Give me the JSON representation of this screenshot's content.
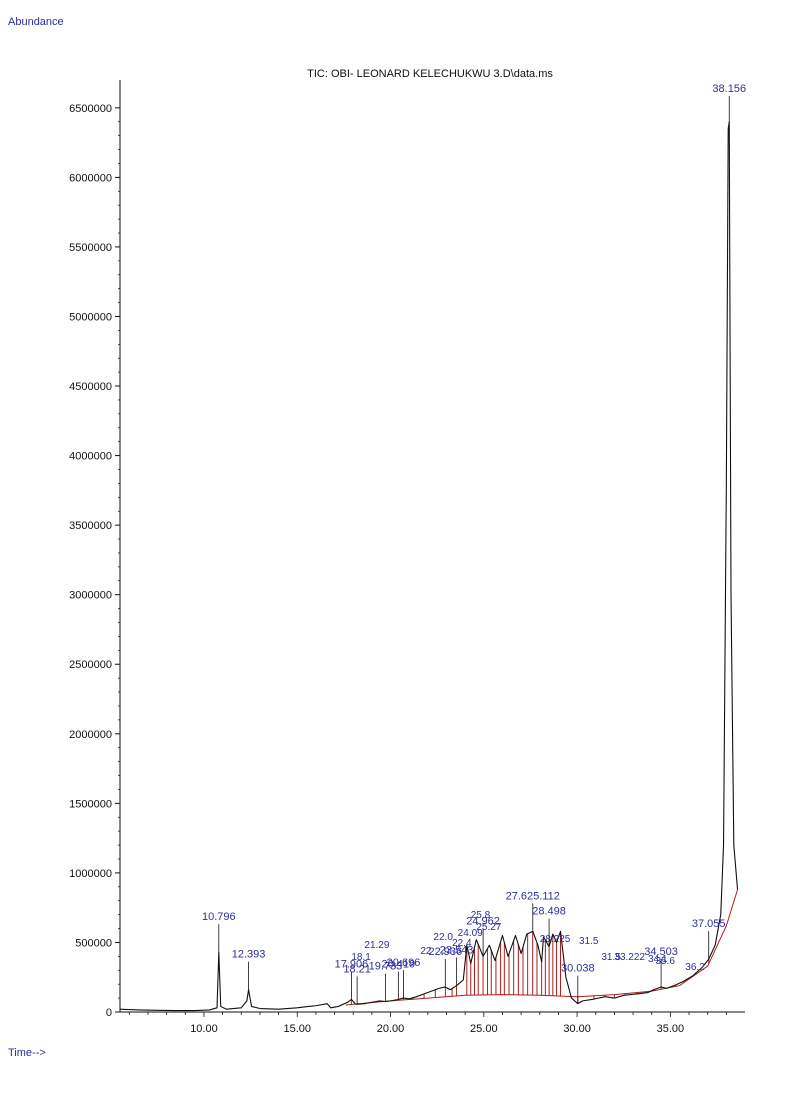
{
  "chart_data": {
    "type": "line",
    "title": "TIC: OBI- LEONARD KELECHUKWU 3.D\\data.ms",
    "ylabel": "Abundance",
    "xlabel": "Time-->",
    "xlim": [
      5.5,
      39
    ],
    "ylim": [
      0,
      6700000
    ],
    "x_ticks": [
      10,
      15,
      20,
      25,
      30,
      35
    ],
    "x_tick_labels": [
      "10.00",
      "15.00",
      "20.00",
      "25.00",
      "30.00",
      "35.00"
    ],
    "y_ticks": [
      0,
      500000,
      1000000,
      1500000,
      2000000,
      2500000,
      3000000,
      3500000,
      4000000,
      4500000,
      5000000,
      5500000,
      6000000,
      6500000
    ],
    "y_tick_labels": [
      "0",
      "500000",
      "1000000",
      "1500000",
      "2000000",
      "2500000",
      "3000000",
      "3500000",
      "4000000",
      "4500000",
      "5000000",
      "5500000",
      "6000000",
      "6500000"
    ],
    "series": [
      {
        "x": [
          5.5,
          6.5,
          7.5,
          8.5,
          9.5,
          10.3,
          10.7,
          10.796,
          10.9,
          11.2,
          12.0,
          12.3,
          12.393,
          12.55,
          13.0,
          14.0,
          15.0,
          15.6,
          16.0,
          16.6,
          16.8,
          17.2,
          17.7,
          17.906,
          18.1,
          18.21,
          18.6,
          19.0,
          19.4,
          19.73,
          20.0,
          20.4,
          20.696,
          21.0,
          21.4,
          21.8,
          22.2,
          22.6,
          22.936,
          23.2,
          23.543,
          23.9,
          24.09,
          24.3,
          24.6,
          24.962,
          25.3,
          25.6,
          26.0,
          26.3,
          26.7,
          27.0,
          27.3,
          27.625,
          27.9,
          28.1,
          28.2,
          28.498,
          28.7,
          28.9,
          29.112,
          29.4,
          29.7,
          30.038,
          30.3,
          30.8,
          31.5,
          32.0,
          32.5,
          33.2,
          33.8,
          34.1,
          34.503,
          34.8,
          35.2,
          35.7,
          36.2,
          36.7,
          37.055,
          37.4,
          37.7,
          37.85,
          38.0,
          38.1,
          38.156,
          38.25,
          38.4,
          38.6
        ],
        "y": [
          20000,
          15000,
          12000,
          10000,
          10000,
          15000,
          30000,
          430000,
          40000,
          20000,
          30000,
          80000,
          160000,
          40000,
          25000,
          20000,
          30000,
          40000,
          45000,
          60000,
          30000,
          40000,
          70000,
          90000,
          60000,
          55000,
          60000,
          70000,
          80000,
          75000,
          80000,
          90000,
          100000,
          95000,
          110000,
          130000,
          150000,
          170000,
          180000,
          160000,
          190000,
          230000,
          480000,
          350000,
          520000,
          400000,
          480000,
          370000,
          550000,
          400000,
          550000,
          420000,
          560000,
          580000,
          480000,
          360000,
          540000,
          470000,
          560000,
          500000,
          580000,
          250000,
          100000,
          60000,
          80000,
          90000,
          110000,
          100000,
          120000,
          130000,
          140000,
          160000,
          180000,
          170000,
          190000,
          220000,
          260000,
          320000,
          380000,
          480000,
          700000,
          1200000,
          3800000,
          6350000,
          6400000,
          3000000,
          1200000,
          880000
        ]
      }
    ],
    "baseline": {
      "x": [
        17.6,
        20.0,
        22.0,
        24.0,
        26.0,
        28.0,
        30.0,
        32.0,
        34.0,
        35.5,
        37.0,
        38.0,
        38.6
      ],
      "y": [
        50000,
        80000,
        100000,
        120000,
        125000,
        120000,
        110000,
        125000,
        150000,
        190000,
        330000,
        620000,
        880000
      ]
    },
    "integration_x": [
      17.9,
      18.2,
      18.6,
      19.0,
      19.4,
      19.8,
      20.2,
      20.7,
      21.2,
      21.8,
      22.4,
      22.94,
      23.3,
      23.54,
      24.09,
      24.3,
      24.5,
      24.7,
      24.96,
      25.2,
      25.4,
      25.65,
      25.9,
      26.1,
      26.35,
      26.6,
      26.85,
      27.1,
      27.35,
      27.62,
      27.85,
      28.1,
      28.3,
      28.5,
      28.7,
      28.9,
      29.11,
      30.04,
      30.9,
      31.5,
      32.0,
      32.6,
      33.2,
      33.8,
      34.1,
      34.5,
      35.0,
      35.3,
      36.0,
      37.06
    ],
    "peak_labels": [
      {
        "x": 10.796,
        "y": 430000,
        "text": "10.796"
      },
      {
        "x": 12.393,
        "y": 160000,
        "text": "12.393"
      },
      {
        "x": 17.906,
        "y": 90000,
        "text": "17.906"
      },
      {
        "x": 20.696,
        "y": 100000,
        "text": "20.696"
      },
      {
        "x": 38.156,
        "y": 6400000,
        "text": "38.156"
      },
      {
        "x": 24.962,
        "y": 400000,
        "text": "24.962"
      },
      {
        "x": 27.625,
        "y": 580000,
        "text": "27.625.112"
      },
      {
        "x": 28.498,
        "y": 470000,
        "text": "28.498"
      },
      {
        "x": 30.038,
        "y": 60000,
        "text": "30.038"
      },
      {
        "x": 34.503,
        "y": 180000,
        "text": "34.503"
      },
      {
        "x": 37.055,
        "y": 380000,
        "text": "37.055"
      },
      {
        "x": 22.936,
        "y": 180000,
        "text": "22.936"
      },
      {
        "x": 23.543,
        "y": 190000,
        "text": "23.543"
      },
      {
        "x": 19.73,
        "y": 75000,
        "text": "19.733"
      },
      {
        "x": 18.21,
        "y": 55000,
        "text": "18.21"
      },
      {
        "x": 20.419,
        "y": 90000,
        "text": "20.419"
      }
    ],
    "crowded_labels": [
      {
        "x": 17.9,
        "dy": 0,
        "text": "18.1"
      },
      {
        "x": 18.6,
        "dy": 12,
        "text": "21.29"
      },
      {
        "x": 21.6,
        "dy": 6,
        "text": "22"
      },
      {
        "x": 22.3,
        "dy": 20,
        "text": "22.0"
      },
      {
        "x": 23.6,
        "dy": 24,
        "text": "24.09"
      },
      {
        "x": 23.3,
        "dy": 14,
        "text": "22.4"
      },
      {
        "x": 24.6,
        "dy": 30,
        "text": "25.27"
      },
      {
        "x": 24.3,
        "dy": 42,
        "text": "25.8"
      },
      {
        "x": 28.0,
        "dy": 18,
        "text": "28.225"
      },
      {
        "x": 30.1,
        "dy": 16,
        "text": "31.5"
      },
      {
        "x": 31.3,
        "dy": 0,
        "text": "31.5"
      },
      {
        "x": 32.0,
        "dy": 0,
        "text": "33.222"
      },
      {
        "x": 33.8,
        "dy": -2,
        "text": "34.1"
      },
      {
        "x": 34.2,
        "dy": -4,
        "text": "35.6"
      },
      {
        "x": 35.8,
        "dy": -10,
        "text": "36.2"
      }
    ],
    "colors": {
      "trace": "#111111",
      "integration": "#b01c1c",
      "label": "#2c2f9e",
      "axis": "#111111"
    }
  }
}
